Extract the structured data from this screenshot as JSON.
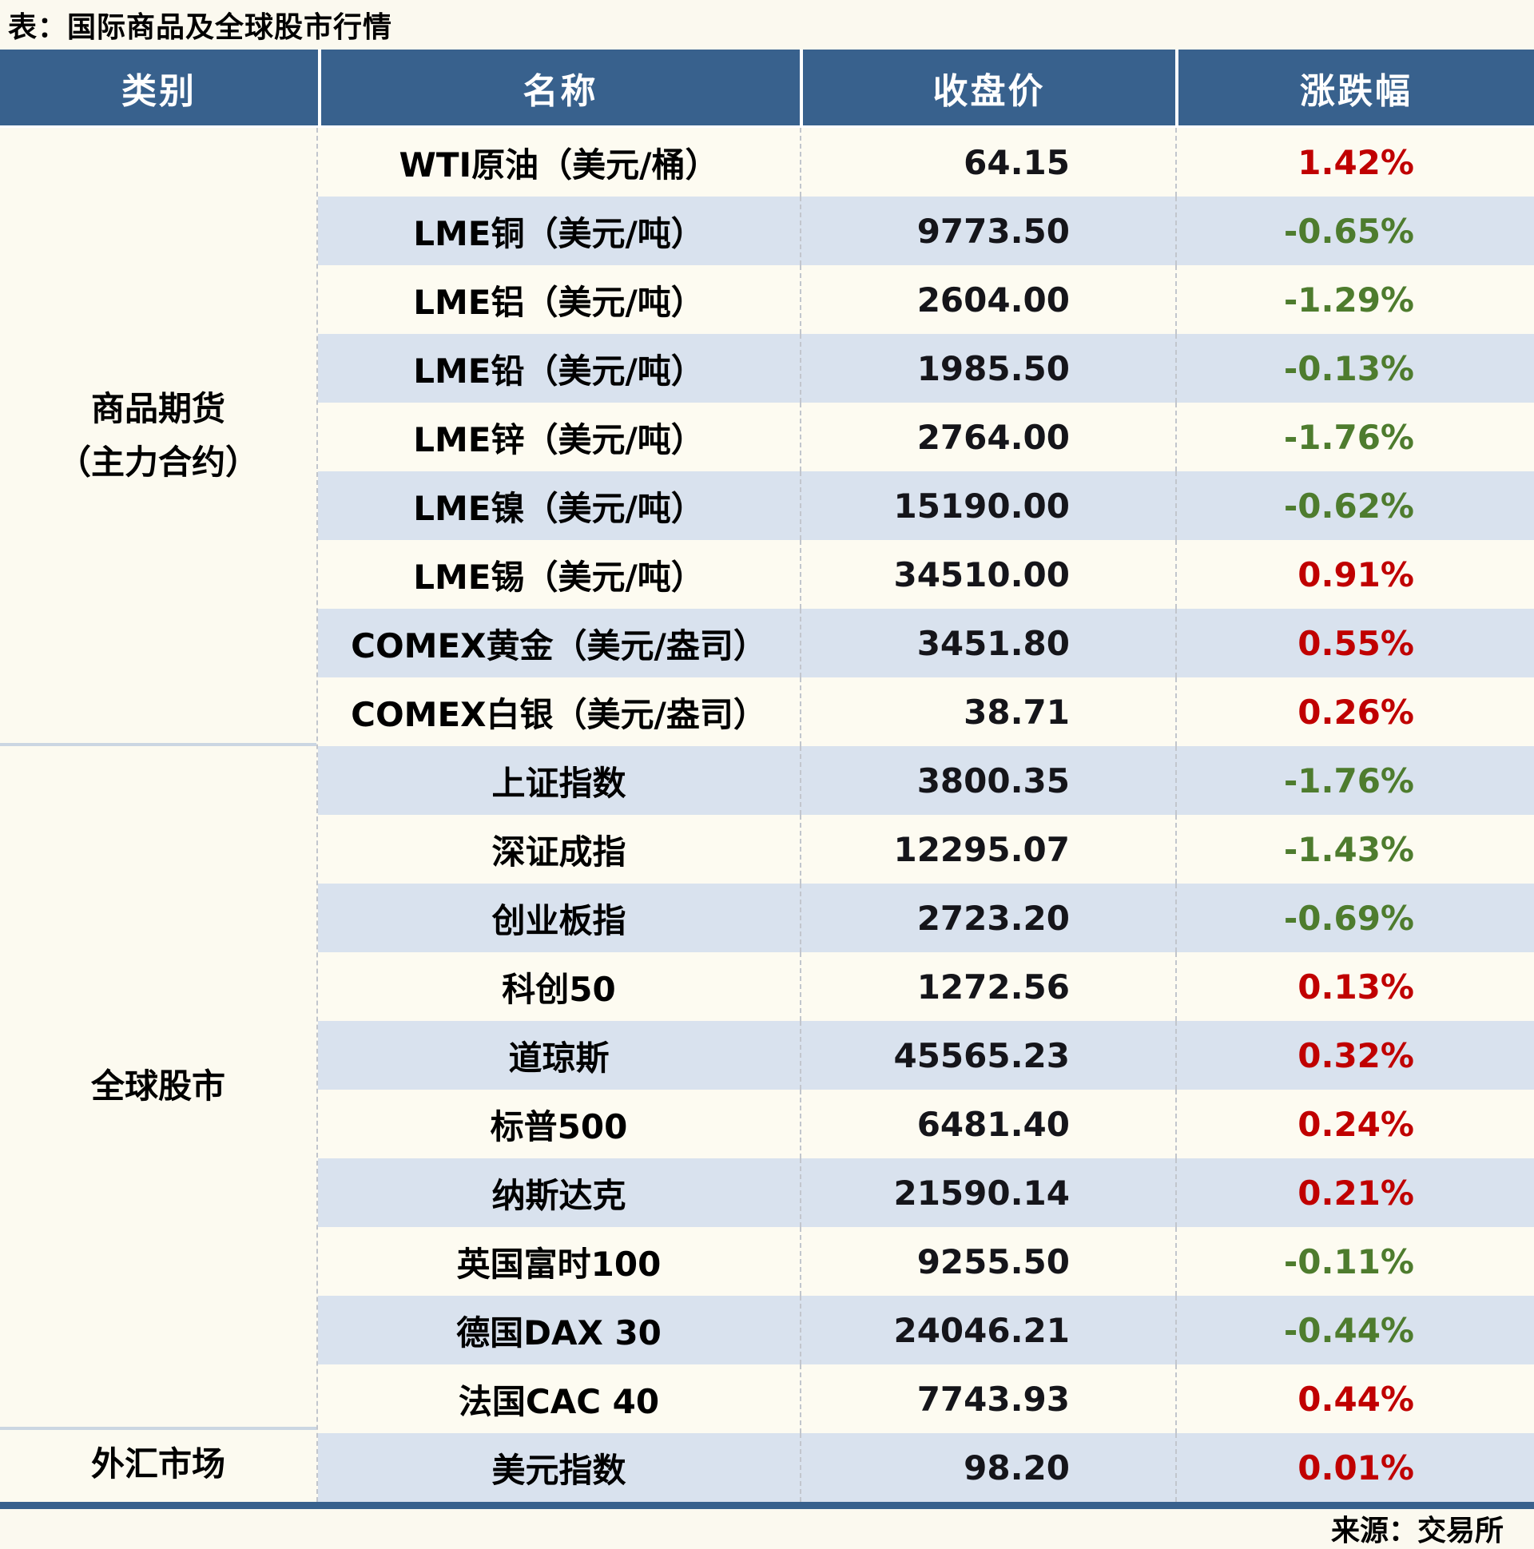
{
  "chart_data": {
    "type": "table",
    "title": "表：国际商品及全球股市行情",
    "columns": [
      "类别",
      "名称",
      "收盘价",
      "涨跌幅"
    ],
    "sections": [
      {
        "category_lines": [
          "商品期货",
          "（主力合约）"
        ],
        "rows": [
          {
            "name": "WTI原油（美元/桶）",
            "close": "64.15",
            "change_pct": "1.42%"
          },
          {
            "name": "LME铜（美元/吨）",
            "close": "9773.50",
            "change_pct": "-0.65%"
          },
          {
            "name": "LME铝（美元/吨）",
            "close": "2604.00",
            "change_pct": "-1.29%"
          },
          {
            "name": "LME铅（美元/吨）",
            "close": "1985.50",
            "change_pct": "-0.13%"
          },
          {
            "name": "LME锌（美元/吨）",
            "close": "2764.00",
            "change_pct": "-1.76%"
          },
          {
            "name": "LME镍（美元/吨）",
            "close": "15190.00",
            "change_pct": "-0.62%"
          },
          {
            "name": "LME锡（美元/吨）",
            "close": "34510.00",
            "change_pct": "0.91%"
          },
          {
            "name": "COMEX黄金（美元/盎司）",
            "close": "3451.80",
            "change_pct": "0.55%"
          },
          {
            "name": "COMEX白银（美元/盎司）",
            "close": "38.71",
            "change_pct": "0.26%"
          }
        ]
      },
      {
        "category_lines": [
          "全球股市"
        ],
        "rows": [
          {
            "name": "上证指数",
            "close": "3800.35",
            "change_pct": "-1.76%"
          },
          {
            "name": "深证成指",
            "close": "12295.07",
            "change_pct": "-1.43%"
          },
          {
            "name": "创业板指",
            "close": "2723.20",
            "change_pct": "-0.69%"
          },
          {
            "name": "科创50",
            "close": "1272.56",
            "change_pct": "0.13%"
          },
          {
            "name": "道琼斯",
            "close": "45565.23",
            "change_pct": "0.32%"
          },
          {
            "name": "标普500",
            "close": "6481.40",
            "change_pct": "0.24%"
          },
          {
            "name": "纳斯达克",
            "close": "21590.14",
            "change_pct": "0.21%"
          },
          {
            "name": "英国富时100",
            "close": "9255.50",
            "change_pct": "-0.11%"
          },
          {
            "name": "德国DAX 30",
            "close": "24046.21",
            "change_pct": "-0.44%"
          },
          {
            "name": "法国CAC 40",
            "close": "7743.93",
            "change_pct": "0.44%"
          }
        ]
      },
      {
        "category_lines": [
          "外汇市场"
        ],
        "rows": [
          {
            "name": "美元指数",
            "close": "98.20",
            "change_pct": "0.01%"
          }
        ]
      }
    ],
    "source_note": "来源：交易所",
    "colors": {
      "up": "#C00000",
      "down": "#4E7C2E",
      "header_bg": "#38618D",
      "header_text": "#FFFFFF",
      "row_bg": "#FDFBF1",
      "row_alt_bg": "#D9E2EE",
      "category_bg": "#FCFAF0",
      "page_bg": "#FBF9EF",
      "accent_bar": "#38618D",
      "value_text": "#15151A"
    }
  }
}
